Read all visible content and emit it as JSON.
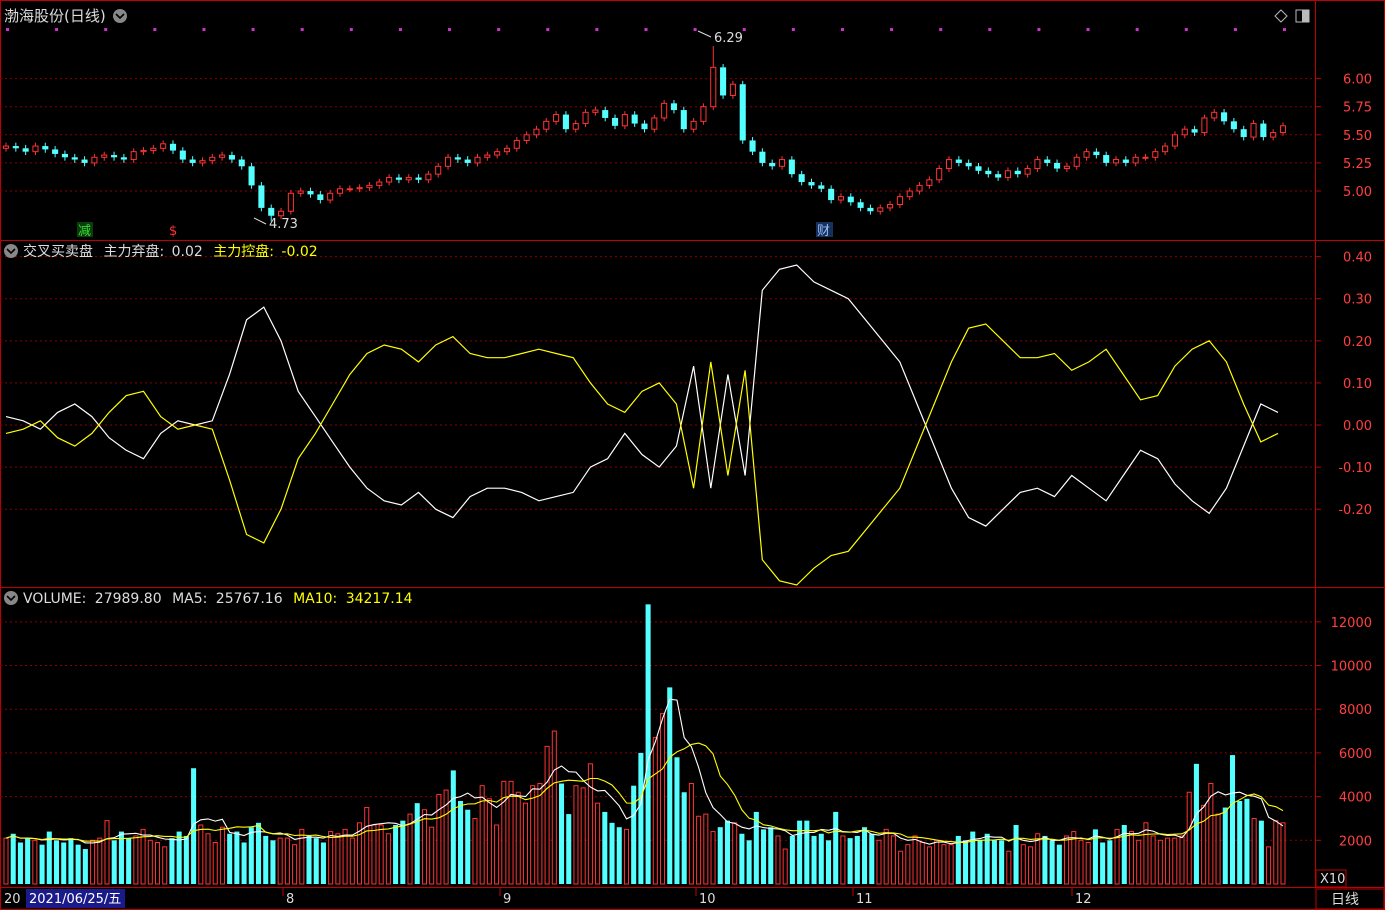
{
  "price_panel": {
    "title": "渤海股份(日线)",
    "menu_icon": "chevron-down-circle-icon",
    "corner_icons": [
      "diamond-icon",
      "window-toggle-icon"
    ],
    "high_label": "6.29",
    "low_label": "4.73",
    "markers": [
      {
        "text": "减",
        "color": "#22aa22"
      },
      {
        "text": "$",
        "color": "#ff3333"
      },
      {
        "text": "财",
        "color": "#3366cc"
      }
    ]
  },
  "indicator_panel": {
    "name": "交叉买卖盘",
    "line1_label": "主力弃盘:",
    "line1_value": "0.02",
    "line2_label": "主力控盘:",
    "line2_value": "-0.02"
  },
  "volume_panel": {
    "volume_label": "VOLUME:",
    "volume_value": "27989.80",
    "ma5_label": "MA5:",
    "ma5_value": "25767.16",
    "ma10_label": "MA10:",
    "ma10_value": "34217.14",
    "unit": "X10"
  },
  "bottom_bar": {
    "cursor_date": "2021/06/25/五",
    "left_prefix": "20",
    "month_ticks": [
      "8",
      "9",
      "10",
      "11",
      "12"
    ],
    "period": "日线"
  },
  "colors": {
    "up": "#ff3333",
    "down": "#54ffff",
    "white_line": "#ffffff",
    "yellow_line": "#ffff00",
    "grid": "#8b0000",
    "frame": "#c00000",
    "axis_text": "#ff4040"
  },
  "chart_data": [
    {
      "type": "candlestick",
      "title": "渤海股份(日线)",
      "y_ticks": [
        5.0,
        5.25,
        5.5,
        5.75,
        6.0
      ],
      "ylim": [
        4.6,
        6.45
      ],
      "closes": [
        5.4,
        5.38,
        5.35,
        5.4,
        5.37,
        5.33,
        5.3,
        5.28,
        5.25,
        5.3,
        5.32,
        5.3,
        5.28,
        5.35,
        5.36,
        5.38,
        5.42,
        5.36,
        5.28,
        5.25,
        5.27,
        5.3,
        5.32,
        5.28,
        5.22,
        5.05,
        4.85,
        4.78,
        4.82,
        4.98,
        5.0,
        4.97,
        4.92,
        4.98,
        5.02,
        5.02,
        5.03,
        5.05,
        5.08,
        5.12,
        5.1,
        5.12,
        5.1,
        5.15,
        5.22,
        5.3,
        5.28,
        5.25,
        5.3,
        5.32,
        5.35,
        5.38,
        5.45,
        5.5,
        5.55,
        5.62,
        5.68,
        5.55,
        5.6,
        5.7,
        5.72,
        5.65,
        5.58,
        5.68,
        5.6,
        5.55,
        5.65,
        5.78,
        5.72,
        5.55,
        5.62,
        5.75,
        6.1,
        5.85,
        5.95,
        5.45,
        5.35,
        5.25,
        5.22,
        5.28,
        5.15,
        5.08,
        5.05,
        5.02,
        4.92,
        4.95,
        4.9,
        4.85,
        4.82,
        4.85,
        4.88,
        4.95,
        5.0,
        5.05,
        5.1,
        5.2,
        5.28,
        5.25,
        5.22,
        5.18,
        5.15,
        5.12,
        5.18,
        5.15,
        5.2,
        5.28,
        5.25,
        5.2,
        5.22,
        5.3,
        5.35,
        5.32,
        5.25,
        5.28,
        5.25,
        5.3,
        5.3,
        5.35,
        5.4,
        5.5,
        5.55,
        5.52,
        5.65,
        5.7,
        5.62,
        5.55,
        5.48,
        5.6,
        5.48,
        5.52,
        5.58
      ],
      "high": {
        "value": 6.29,
        "label": "6.29"
      },
      "low": {
        "value": 4.73,
        "label": "4.73"
      }
    },
    {
      "type": "line",
      "title": "交叉买卖盘",
      "y_ticks": [
        -0.2,
        -0.1,
        0.0,
        0.1,
        0.2,
        0.3,
        0.4
      ],
      "ylim": [
        -0.38,
        0.43
      ],
      "series": [
        {
          "name": "主力弃盘",
          "color": "#ffffff",
          "values": [
            0.02,
            0.01,
            -0.01,
            0.03,
            0.05,
            0.02,
            -0.03,
            -0.06,
            -0.08,
            -0.02,
            0.01,
            0.0,
            0.01,
            0.12,
            0.25,
            0.28,
            0.2,
            0.08,
            0.02,
            -0.04,
            -0.1,
            -0.15,
            -0.18,
            -0.19,
            -0.16,
            -0.2,
            -0.22,
            -0.17,
            -0.15,
            -0.15,
            -0.16,
            -0.18,
            -0.17,
            -0.16,
            -0.1,
            -0.08,
            -0.02,
            -0.07,
            -0.1,
            -0.05,
            0.14,
            -0.15,
            0.12,
            -0.12,
            0.32,
            0.37,
            0.38,
            0.34,
            0.32,
            0.3,
            0.25,
            0.2,
            0.15,
            0.05,
            -0.05,
            -0.15,
            -0.22,
            -0.24,
            -0.2,
            -0.16,
            -0.15,
            -0.17,
            -0.12,
            -0.15,
            -0.18,
            -0.12,
            -0.06,
            -0.08,
            -0.14,
            -0.18,
            -0.21,
            -0.15,
            -0.05,
            0.05,
            0.03
          ]
        },
        {
          "name": "主力控盘",
          "color": "#ffff00",
          "values": [
            -0.02,
            -0.01,
            0.01,
            -0.03,
            -0.05,
            -0.02,
            0.03,
            0.07,
            0.08,
            0.02,
            -0.01,
            0.0,
            -0.01,
            -0.13,
            -0.26,
            -0.28,
            -0.2,
            -0.08,
            -0.02,
            0.05,
            0.12,
            0.17,
            0.19,
            0.18,
            0.15,
            0.19,
            0.21,
            0.17,
            0.16,
            0.16,
            0.17,
            0.18,
            0.17,
            0.16,
            0.1,
            0.05,
            0.03,
            0.08,
            0.1,
            0.05,
            -0.15,
            0.15,
            -0.12,
            0.13,
            -0.32,
            -0.37,
            -0.38,
            -0.34,
            -0.31,
            -0.3,
            -0.25,
            -0.2,
            -0.15,
            -0.05,
            0.05,
            0.15,
            0.23,
            0.24,
            0.2,
            0.16,
            0.16,
            0.17,
            0.13,
            0.15,
            0.18,
            0.12,
            0.06,
            0.07,
            0.14,
            0.18,
            0.2,
            0.15,
            0.05,
            -0.04,
            -0.02
          ]
        }
      ]
    },
    {
      "type": "bar",
      "title": "VOLUME",
      "y_ticks": [
        2000,
        4000,
        6000,
        8000,
        10000,
        12000
      ],
      "ylim": [
        0,
        13000
      ],
      "values": [
        2100,
        2300,
        1900,
        2100,
        2000,
        1800,
        2400,
        2000,
        1900,
        2100,
        1800,
        1600,
        2000,
        2100,
        2900,
        2000,
        2400,
        2100,
        2200,
        2500,
        2000,
        1900,
        1700,
        2100,
        2400,
        2200,
        5300,
        2700,
        2300,
        1900,
        2600,
        2300,
        2400,
        1900,
        2600,
        2800,
        2200,
        2000,
        2100,
        2100,
        1800,
        2500,
        2200,
        2100,
        1900,
        2400,
        2300,
        2500,
        2100,
        2800,
        3500,
        2700,
        2700,
        2300,
        2700,
        2900,
        3200,
        3700,
        3400,
        2600,
        4100,
        4300,
        5200,
        3800,
        3400,
        3000,
        4500,
        3900,
        2700,
        4700,
        4700,
        4200,
        3700,
        4500,
        4600,
        6300,
        7000,
        4600,
        3200,
        4500,
        4400,
        5500,
        3700,
        3300,
        2800,
        2600,
        2500,
        4500,
        6000,
        12800,
        6700,
        7800,
        9000,
        5800,
        4200,
        4600,
        3100,
        3200,
        2400,
        2600,
        2900,
        2800,
        2300,
        2000,
        3300,
        2500,
        2600,
        2200,
        1600,
        2200,
        2900,
        2900,
        2200,
        2300,
        2000,
        3300,
        2200,
        2100,
        2200,
        2600,
        2300,
        2000,
        2500,
        2200,
        1500,
        1800,
        2200,
        1900,
        1700,
        2000,
        1800,
        1800,
        2200,
        2000,
        2400,
        2000,
        2300,
        2000,
        2000,
        1500,
        2700,
        1800,
        1700,
        2300,
        2200,
        2000,
        1800,
        2200,
        2400,
        2000,
        1900,
        2500,
        1900,
        2000,
        2500,
        2700,
        2400,
        2000,
        2800,
        2200,
        2000,
        2100,
        2100,
        2200,
        4200,
        5500,
        3600,
        4600,
        3200,
        3500,
        5900,
        3800,
        3900,
        3000,
        2900,
        1700,
        2900,
        2800
      ],
      "ma5_value": 25767.16,
      "ma10_value": 34217.14
    }
  ]
}
